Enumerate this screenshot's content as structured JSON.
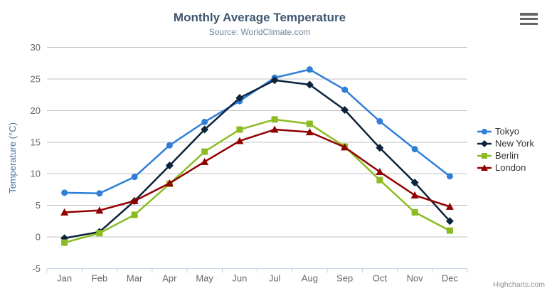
{
  "chart_data": {
    "type": "line",
    "title": "Monthly Average Temperature",
    "subtitle": "Source: WorldClimate.com",
    "xlabel": "",
    "ylabel": "Temperature (°C)",
    "categories": [
      "Jan",
      "Feb",
      "Mar",
      "Apr",
      "May",
      "Jun",
      "Jul",
      "Aug",
      "Sep",
      "Oct",
      "Nov",
      "Dec"
    ],
    "series": [
      {
        "name": "Tokyo",
        "color": "#2f7ed8",
        "marker": "circle",
        "values": [
          7.0,
          6.9,
          9.5,
          14.5,
          18.2,
          21.5,
          25.2,
          26.5,
          23.3,
          18.3,
          13.9,
          9.6
        ]
      },
      {
        "name": "New York",
        "color": "#0d233a",
        "marker": "diamond",
        "values": [
          -0.2,
          0.8,
          5.7,
          11.3,
          17.0,
          22.0,
          24.8,
          24.1,
          20.1,
          14.1,
          8.6,
          2.5
        ]
      },
      {
        "name": "Berlin",
        "color": "#8bbc21",
        "marker": "square",
        "values": [
          -0.9,
          0.6,
          3.5,
          8.4,
          13.5,
          17.0,
          18.6,
          17.9,
          14.3,
          9.0,
          3.9,
          1.0
        ]
      },
      {
        "name": "London",
        "color": "#910000",
        "marker": "triangle",
        "values": [
          3.9,
          4.2,
          5.7,
          8.5,
          11.9,
          15.2,
          17.0,
          16.6,
          14.2,
          10.3,
          6.6,
          4.8
        ]
      }
    ],
    "ylim": [
      -5,
      30
    ],
    "ytick_step": 5,
    "grid": true,
    "legend_position": "right"
  },
  "credits": {
    "label": "Highcharts.com"
  },
  "context_menu": {
    "icon": "hamburger-icon"
  },
  "colors": {
    "title": "#3e576f",
    "subtitle": "#6d869f",
    "axis_labels": "#666666",
    "y_axis_title": "#4d759e",
    "gridline": "#c0c0c0",
    "axis_line": "#c0d0e0",
    "legend_text": "#333333",
    "credits": "#909090",
    "menu_icon": "#666666",
    "background": "#ffffff"
  }
}
